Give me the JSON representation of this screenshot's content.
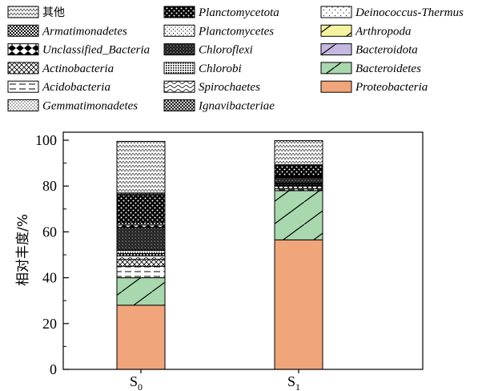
{
  "chart_data": {
    "type": "bar",
    "stacked": true,
    "categories": [
      "S0",
      "S1"
    ],
    "category_labels": [
      {
        "main": "S",
        "sub": "0"
      },
      {
        "main": "S",
        "sub": "1"
      }
    ],
    "ylabel": "相对丰度/%",
    "xlabel": "",
    "ylim": [
      0,
      100
    ],
    "yticks": [
      0,
      20,
      40,
      60,
      80,
      100
    ],
    "grid": false,
    "legend_position": "top",
    "series": [
      {
        "name": "Proteobacteria",
        "values": [
          28,
          56.5
        ],
        "color": "#f0a57a",
        "pattern": "solid"
      },
      {
        "name": "Bacteroidetes",
        "values": [
          12,
          21.5
        ],
        "color": "#a9d8ae",
        "pattern": "slash"
      },
      {
        "name": "Bacteroidota",
        "values": [
          0,
          0
        ],
        "color": "#c5b8e0",
        "pattern": "slash"
      },
      {
        "name": "Arthropoda",
        "values": [
          0,
          0
        ],
        "color": "#f6f3a0",
        "pattern": "slash"
      },
      {
        "name": "Acidobacteria",
        "values": [
          5,
          0.8
        ],
        "color": "#ffffff",
        "pattern": "dash"
      },
      {
        "name": "Actinobacteria",
        "values": [
          3,
          1.2
        ],
        "color": "#ffffff",
        "pattern": "crosshatch"
      },
      {
        "name": "Spirochaetes",
        "values": [
          1.5,
          0.3
        ],
        "color": "#ffffff",
        "pattern": "wave"
      },
      {
        "name": "Ignavibacteriae",
        "values": [
          1,
          0.5
        ],
        "color": "#ffffff",
        "pattern": "grid"
      },
      {
        "name": "Chlorobi",
        "values": [
          1.5,
          0.4
        ],
        "color": "#ffffff",
        "pattern": "dense"
      },
      {
        "name": "Chloroflexi",
        "values": [
          10,
          2.5
        ],
        "color": "#ffffff",
        "pattern": "bricks"
      },
      {
        "name": "Unclassified_Bacteria",
        "values": [
          1,
          0.3
        ],
        "color": "#ffffff",
        "pattern": "diamonds"
      },
      {
        "name": "Armatimonadetes",
        "values": [
          1,
          0.3
        ],
        "color": "#ffffff",
        "pattern": "checker"
      },
      {
        "name": "Planctomycetota",
        "values": [
          12,
          4.5
        ],
        "color": "#ffffff",
        "pattern": "heavydots"
      },
      {
        "name": "Gemmatimonadetes",
        "values": [
          0.5,
          0.2
        ],
        "color": "#ffffff",
        "pattern": "finedots"
      },
      {
        "name": "Planctomycetes",
        "values": [
          0.5,
          0.3
        ],
        "color": "#ffffff",
        "pattern": "sparsedots"
      },
      {
        "name": "Deinococcus-Thermus",
        "values": [
          0,
          0
        ],
        "color": "#ffffff",
        "pattern": "dots"
      },
      {
        "name": "其他",
        "values": [
          22.5,
          10.5
        ],
        "color": "#ffffff",
        "pattern": "zigzag"
      }
    ],
    "legend_order": [
      "其他",
      "Planctomycetota",
      "Deinococcus-Thermus",
      "Armatimonadetes",
      "Planctomycetes",
      "Arthropoda",
      "Unclassified_Bacteria",
      "Chloroflexi",
      "Bacteroidota",
      "Actinobacteria",
      "Chlorobi",
      "Bacteroidetes",
      "Acidobacteria",
      "Spirochaetes",
      "Proteobacteria",
      "Gemmatimonadetes",
      "Ignavibacteriae"
    ]
  }
}
